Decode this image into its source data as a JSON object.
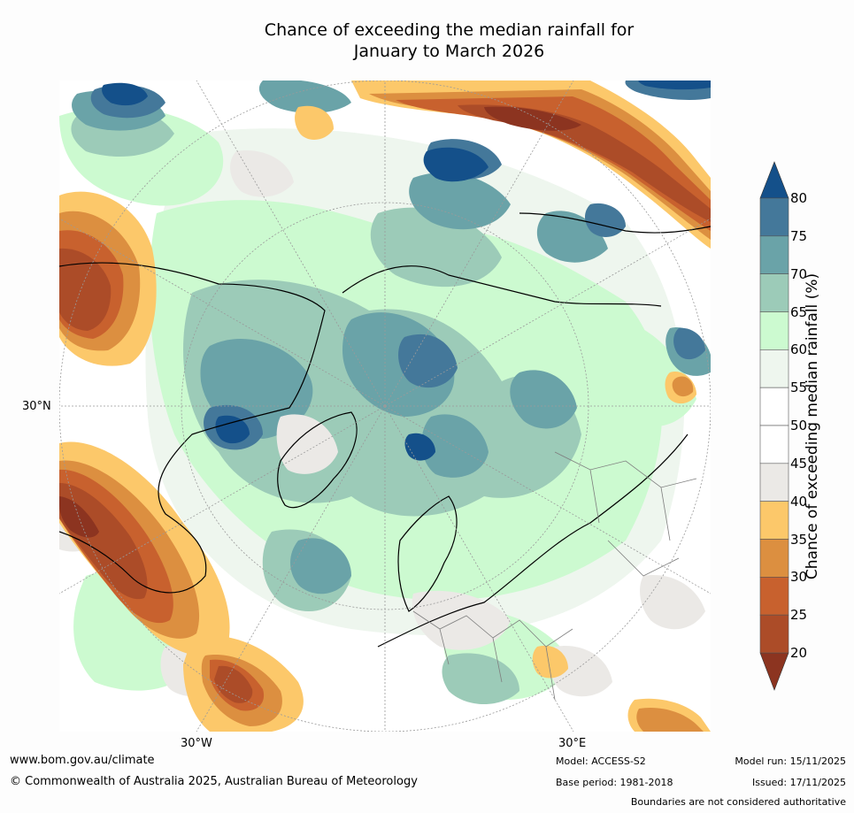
{
  "title": {
    "line1": "Chance of exceeding the median rainfall for",
    "line2": "January to March 2026"
  },
  "map": {
    "projection": "north polar stereographic",
    "labels": {
      "lat30n": "30°N",
      "lon30w": "30°W",
      "lon30e": "30°E"
    },
    "colors": {
      "dark_blue": "#14508a",
      "blue": "#44789a",
      "teal": "#6aa3a8",
      "sea_green": "#9ccbb8",
      "light_green": "#ccfad0",
      "pale_green": "#eef6ee",
      "white": "#ffffff",
      "grey": "#ebe9e6",
      "yellow": "#fcc86a",
      "orange": "#dc8f40",
      "burnt": "#c8612e",
      "rust": "#ac4c28",
      "dark_brown": "#8c3420",
      "coast": "#000000",
      "border": "#7f7f7f",
      "grid": "#9a9a9a"
    }
  },
  "colorbar": {
    "title": "Chance of exceeding median rainfall (%)",
    "ticks": [
      "20",
      "25",
      "30",
      "35",
      "40",
      "45",
      "50",
      "55",
      "60",
      "65",
      "70",
      "75",
      "80"
    ],
    "bands": [
      {
        "range": "75-80",
        "color": "#44789a"
      },
      {
        "range": "70-75",
        "color": "#6aa3a8"
      },
      {
        "range": "65-70",
        "color": "#9ccbb8"
      },
      {
        "range": "60-65",
        "color": "#ccfad0"
      },
      {
        "range": "55-60",
        "color": "#eef6ee"
      },
      {
        "range": "50-55",
        "color": "#ffffff"
      },
      {
        "range": "45-50",
        "color": "#ffffff"
      },
      {
        "range": "40-45",
        "color": "#ebe9e6"
      },
      {
        "range": "35-40",
        "color": "#fcc86a"
      },
      {
        "range": "30-35",
        "color": "#dc8f40"
      },
      {
        "range": "25-30",
        "color": "#c8612e"
      },
      {
        "range": "20-25",
        "color": "#ac4c28"
      }
    ],
    "top_arrow_color": "#14508a",
    "bottom_arrow_color": "#8c3420"
  },
  "footer": {
    "website": "www.bom.gov.au/climate",
    "copyright": "© Commonwealth of Australia 2025, Australian Bureau of Meteorology",
    "model": "Model: ACCESS-S2",
    "base_period": "Base period: 1981-2018",
    "model_run": "Model run: 15/11/2025",
    "issued": "Issued: 17/11/2025",
    "disclaimer": "Boundaries are not considered authoritative"
  }
}
